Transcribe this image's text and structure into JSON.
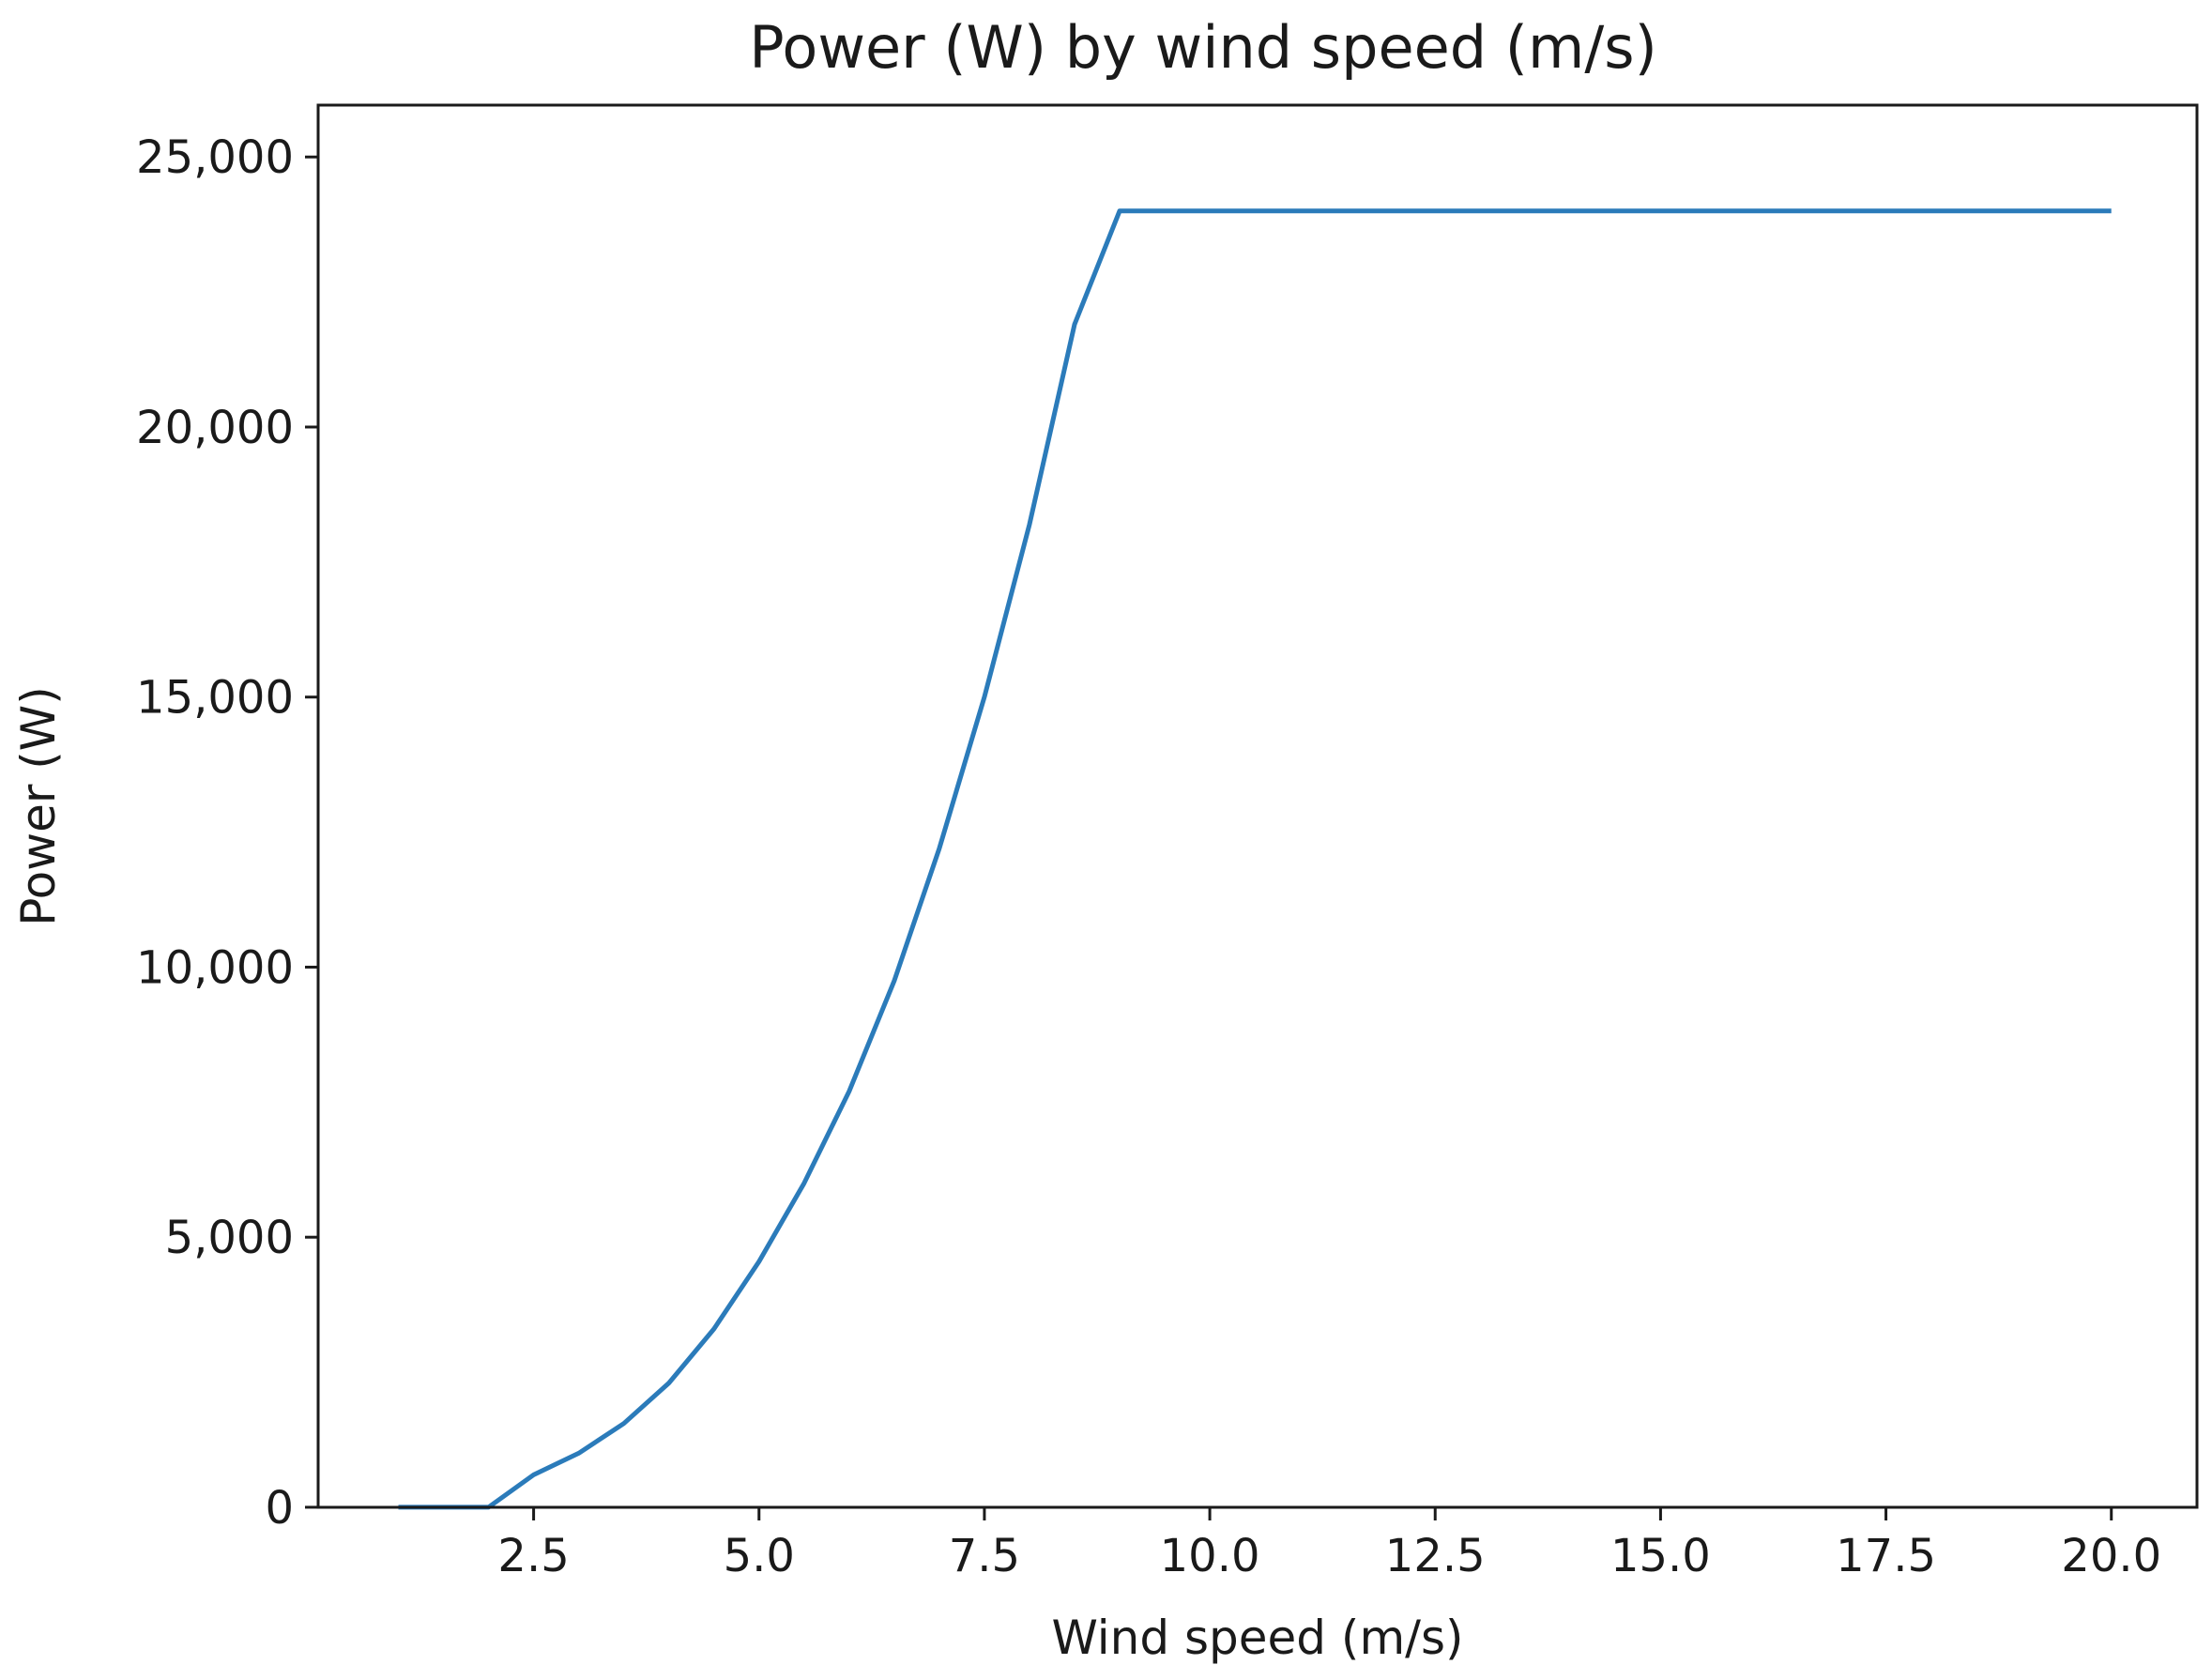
{
  "chart_data": {
    "type": "line",
    "title": "Power (W) by wind speed (m/s)",
    "xlabel": "Wind speed (m/s)",
    "ylabel": "Power (W)",
    "xlim": [
      0.11,
      20.95
    ],
    "ylim": [
      -1,
      25960
    ],
    "grid": false,
    "legend": "none",
    "x_ticks": [
      {
        "value": 2.5,
        "label": "2.5"
      },
      {
        "value": 5.0,
        "label": "5.0"
      },
      {
        "value": 7.5,
        "label": "7.5"
      },
      {
        "value": 10.0,
        "label": "10.0"
      },
      {
        "value": 12.5,
        "label": "12.5"
      },
      {
        "value": 15.0,
        "label": "15.0"
      },
      {
        "value": 17.5,
        "label": "17.5"
      },
      {
        "value": 20.0,
        "label": "20.0"
      }
    ],
    "y_ticks": [
      {
        "value": 0,
        "label": "0"
      },
      {
        "value": 5000,
        "label": "5,000"
      },
      {
        "value": 10000,
        "label": "10,000"
      },
      {
        "value": 15000,
        "label": "15,000"
      },
      {
        "value": 20000,
        "label": "20,000"
      },
      {
        "value": 25000,
        "label": "25,000"
      }
    ],
    "series": [
      {
        "color": "#2b7bba",
        "x": [
          1.0,
          1.5,
          2.0,
          2.5,
          3.0,
          3.5,
          4.0,
          4.5,
          5.0,
          5.5,
          6.0,
          6.5,
          7.0,
          7.5,
          8.0,
          8.5,
          9.0,
          9.5,
          10.0,
          10.5,
          11.0,
          11.5,
          12.0,
          12.5,
          13.0,
          13.5,
          14.0,
          14.5,
          15.0,
          15.5,
          16.0,
          16.5,
          17.0,
          17.5,
          18.0,
          18.5,
          19.0,
          19.5,
          20.0
        ],
        "y": [
          0,
          0,
          0,
          600,
          1000,
          1550,
          2300,
          3300,
          4550,
          6000,
          7700,
          9750,
          12200,
          15000,
          18200,
          21900,
          24000,
          24000,
          24000,
          24000,
          24000,
          24000,
          24000,
          24000,
          24000,
          24000,
          24000,
          24000,
          24000,
          24000,
          24000,
          24000,
          24000,
          24000,
          24000,
          24000,
          24000,
          24000,
          24000
        ]
      }
    ]
  }
}
